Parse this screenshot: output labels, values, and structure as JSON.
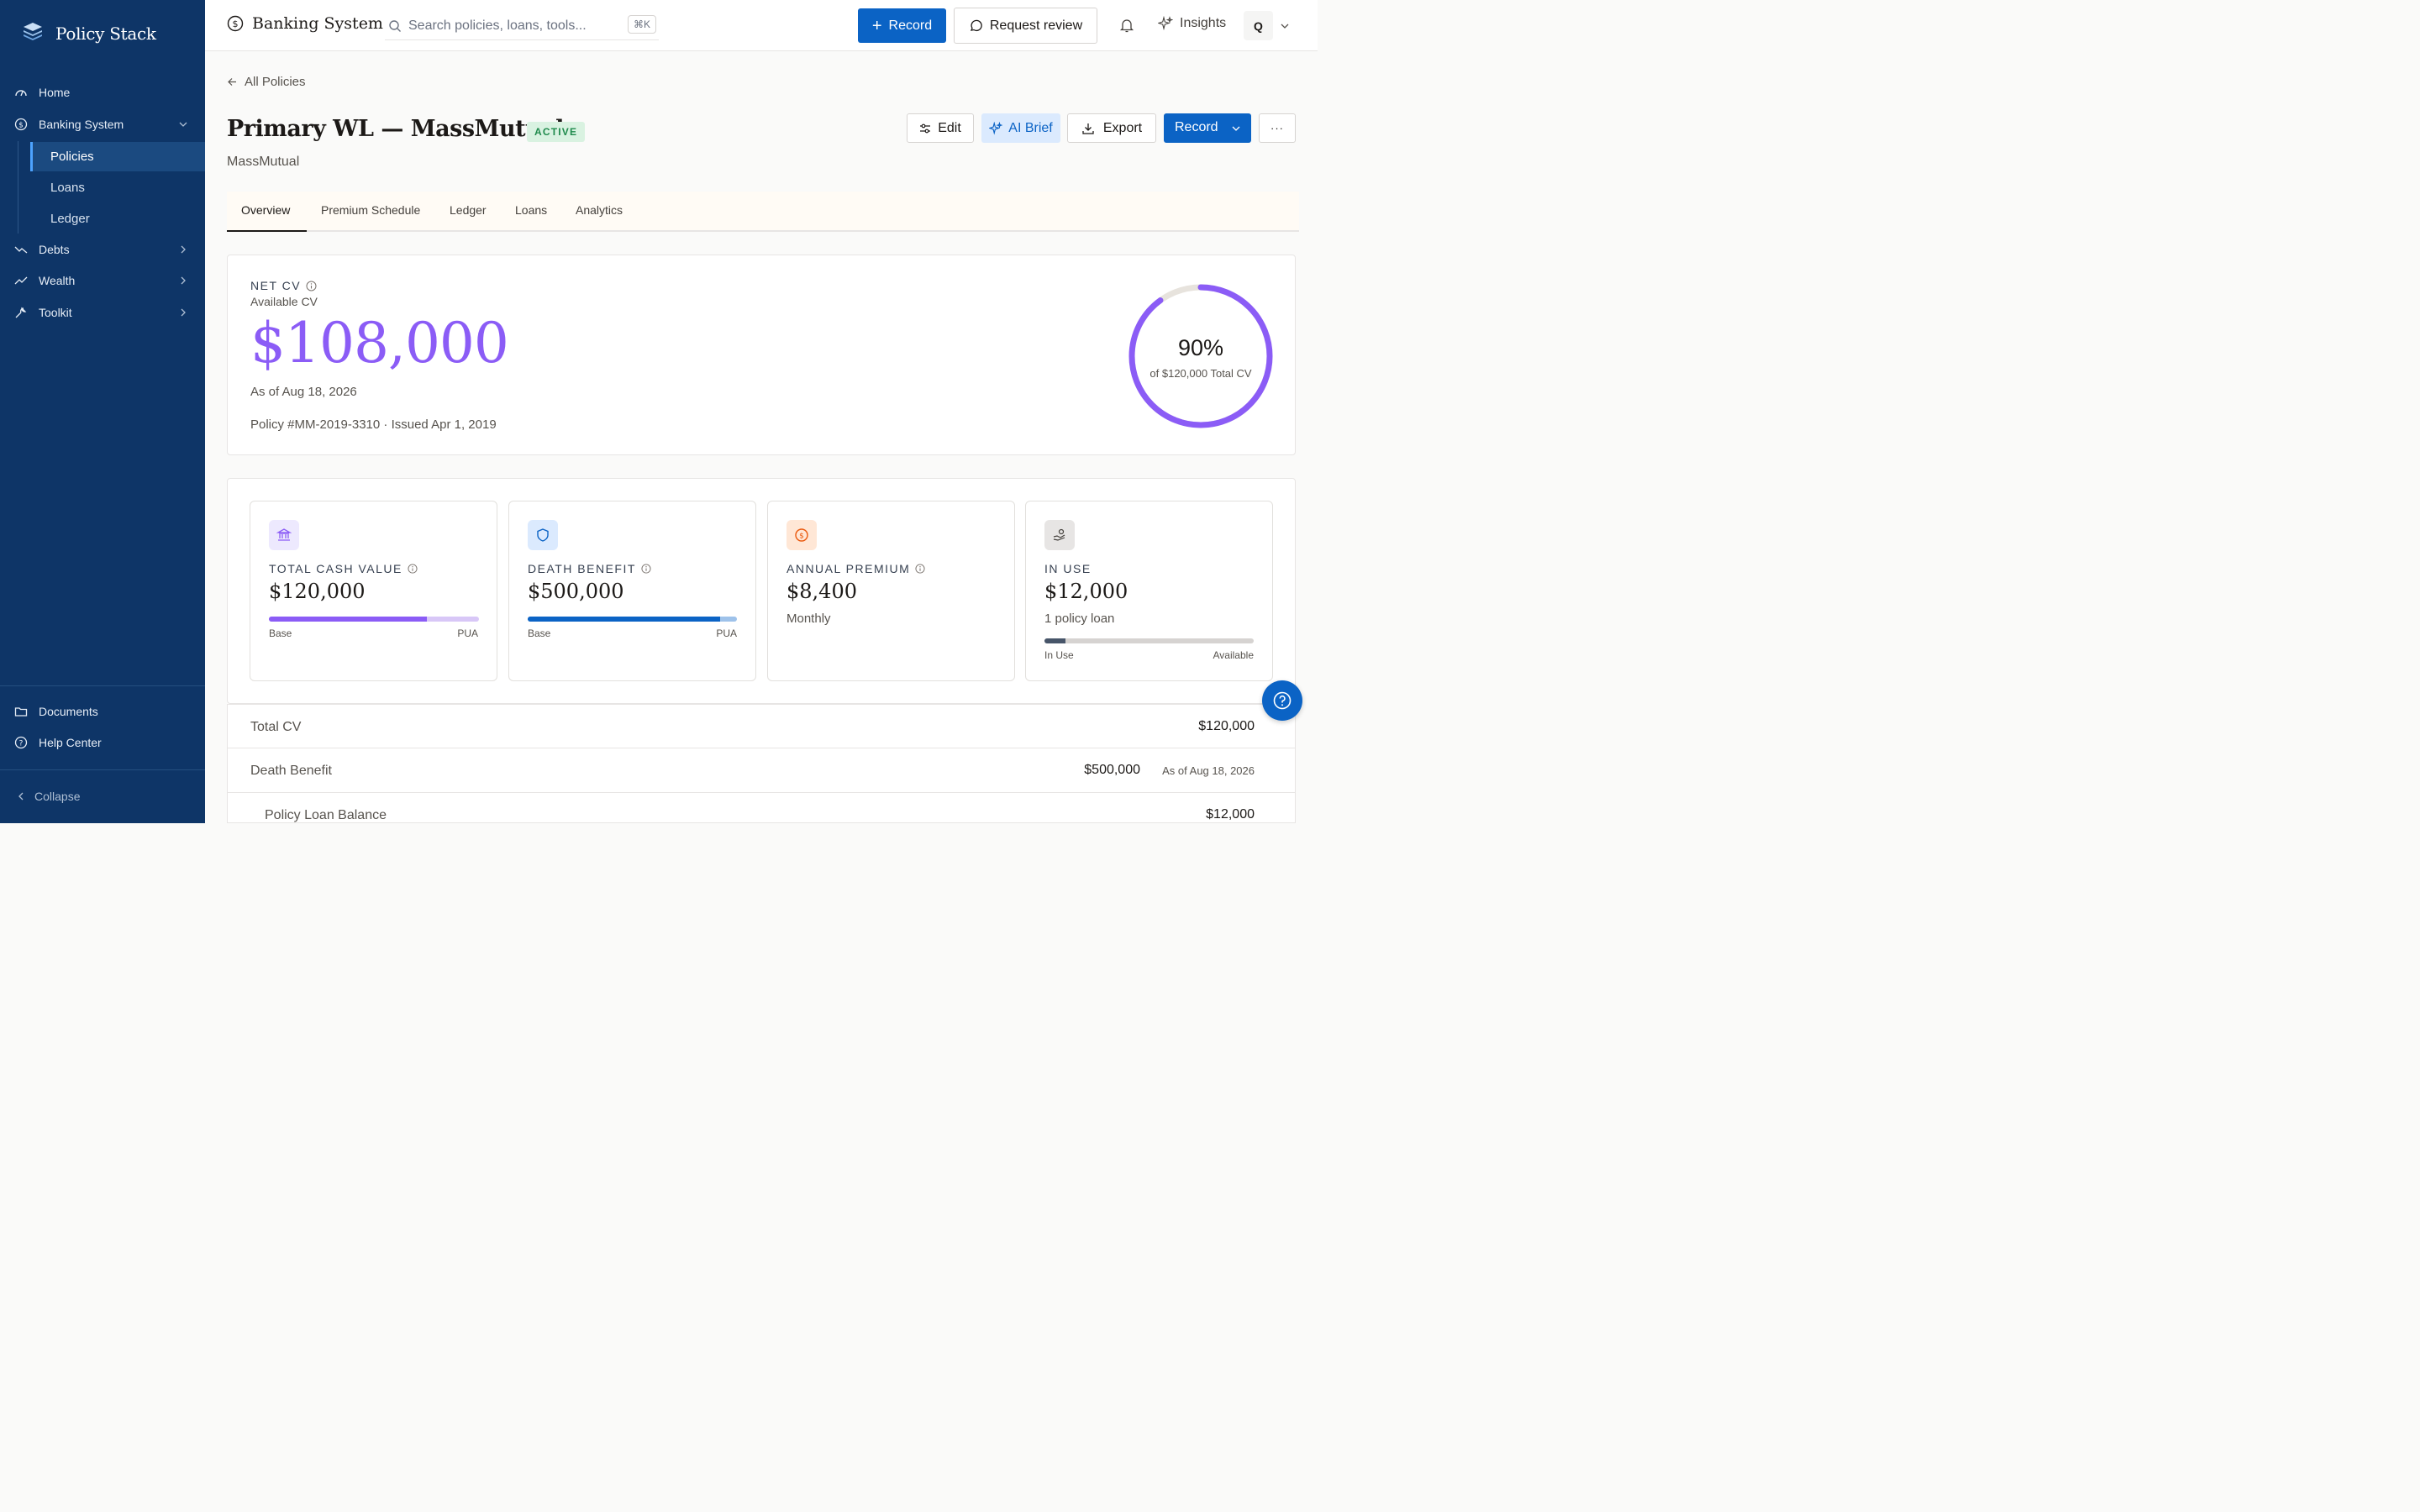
{
  "sidebar": {
    "brand": "Policy Stack",
    "nav": {
      "home": "Home",
      "banking": "Banking System",
      "policies": "Policies",
      "loans": "Loans",
      "ledger": "Ledger",
      "debts": "Debts",
      "wealth": "Wealth",
      "toolkit": "Toolkit",
      "documents": "Documents",
      "help": "Help Center",
      "collapse": "Collapse"
    }
  },
  "topbar": {
    "title": "Banking System",
    "search_placeholder": "Search policies, loans, tools...",
    "shortcut": "⌘K",
    "record_label": "Record",
    "request_review_label": "Request review",
    "insights_label": "Insights",
    "avatar_initial": "Q"
  },
  "page": {
    "back_label": "All Policies",
    "title": "Primary WL — MassMutual",
    "status": "ACTIVE",
    "subtitle": "MassMutual",
    "actions": {
      "edit": "Edit",
      "ai_brief": "AI Brief",
      "export": "Export",
      "record": "Record",
      "more": "···"
    },
    "tabs": [
      "Overview",
      "Premium Schedule",
      "Ledger",
      "Loans",
      "Analytics"
    ]
  },
  "net_cv": {
    "eyebrow": "NET CV",
    "sublabel": "Available CV",
    "value": "$108,000",
    "as_of": "As of Aug 18, 2026",
    "policy_meta": "Policy #MM-2019-3310 · Issued Apr 1, 2019",
    "ring_percent_text": "90%",
    "ring_caption": "of $120,000 Total CV",
    "ring_fraction": 0.9
  },
  "stats": [
    {
      "label": "TOTAL CASH VALUE",
      "value": "$120,000",
      "legend_left": "Base",
      "legend_right": "PUA",
      "fraction": 0.75
    },
    {
      "label": "DEATH BENEFIT",
      "value": "$500,000",
      "legend_left": "Base",
      "legend_right": "PUA",
      "fraction": 0.92
    },
    {
      "label": "ANNUAL PREMIUM",
      "value": "$8,400",
      "note": "Monthly"
    },
    {
      "label": "IN USE",
      "value": "$12,000",
      "note": "1 policy loan",
      "legend_left": "In Use",
      "legend_right": "Available",
      "fraction": 0.1
    }
  ],
  "rows": [
    {
      "label": "Total CV",
      "value": "$120,000"
    },
    {
      "label": "Death Benefit",
      "value": "$500,000",
      "note": "As of Aug 18, 2026"
    },
    {
      "label": "Policy Loan Balance",
      "value": "$12,000"
    }
  ],
  "colors": {
    "sidebar": "#0e3567",
    "primary": "#0b63c5",
    "accent_purple": "#8b5cf6",
    "active_green": "#1f8a4c"
  }
}
